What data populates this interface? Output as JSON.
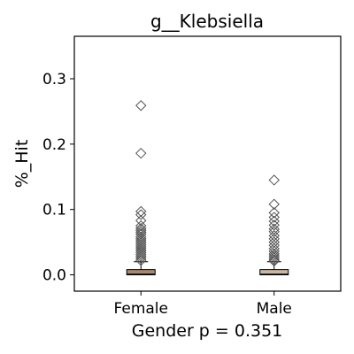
{
  "chart_data": {
    "type": "box",
    "title": "g__Klebsiella",
    "xlabel": "Gender p = 0.351",
    "ylabel": "%_Hit",
    "ylim": [
      -0.025,
      0.365
    ],
    "yticks": [
      0.0,
      0.1,
      0.2,
      0.3
    ],
    "ytick_labels": [
      "0.0",
      "0.1",
      "0.2",
      "0.3"
    ],
    "grid": false,
    "categories": [
      "Female",
      "Male"
    ],
    "boxes": [
      {
        "name": "Female",
        "color": "#a8876f",
        "q1": 0.0,
        "median": 0.001,
        "q3": 0.008,
        "whisker_low": 0.0,
        "whisker_high": 0.02,
        "fliers": [
          0.259,
          0.186,
          0.097,
          0.092,
          0.083,
          0.075,
          0.071,
          0.068,
          0.065,
          0.062,
          0.058,
          0.055,
          0.052,
          0.049,
          0.046,
          0.043,
          0.04,
          0.037,
          0.034,
          0.031,
          0.028,
          0.025,
          0.022
        ]
      },
      {
        "name": "Male",
        "color": "#c9b7a6",
        "q1": 0.0,
        "median": 0.001,
        "q3": 0.008,
        "whisker_low": 0.0,
        "whisker_high": 0.02,
        "fliers": [
          0.145,
          0.108,
          0.095,
          0.088,
          0.082,
          0.076,
          0.07,
          0.066,
          0.06,
          0.055,
          0.05,
          0.045,
          0.04,
          0.036,
          0.032,
          0.029,
          0.026,
          0.023,
          0.021
        ]
      }
    ]
  }
}
